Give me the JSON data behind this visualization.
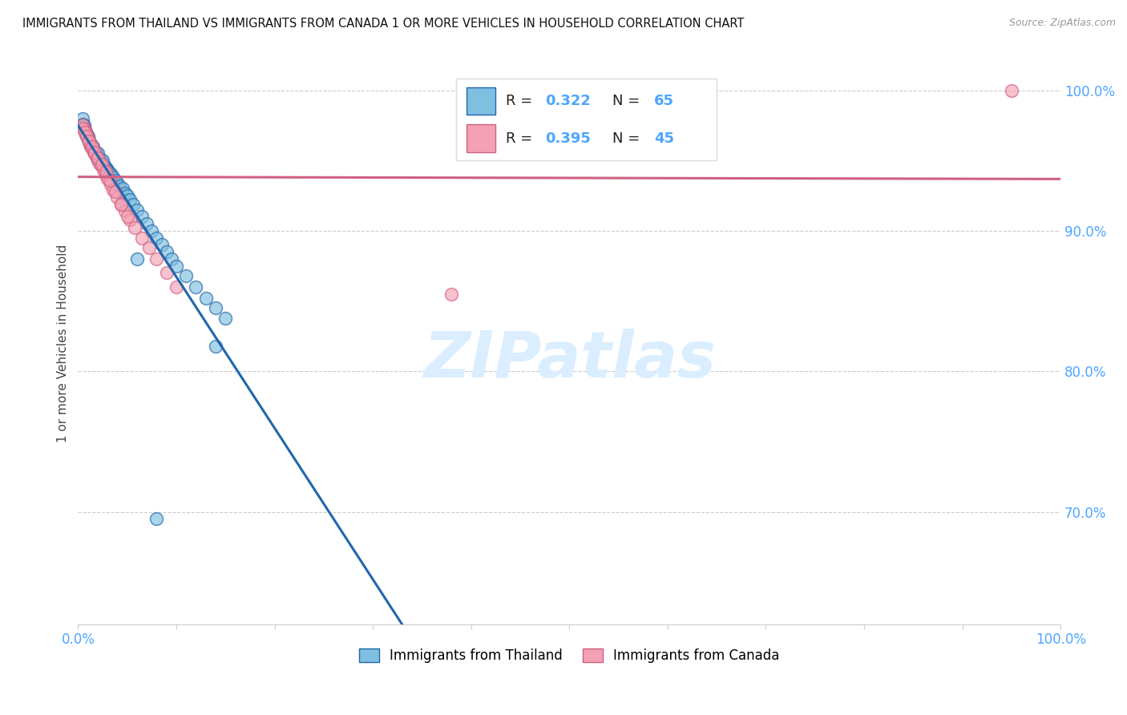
{
  "title": "IMMIGRANTS FROM THAILAND VS IMMIGRANTS FROM CANADA 1 OR MORE VEHICLES IN HOUSEHOLD CORRELATION CHART",
  "source": "Source: ZipAtlas.com",
  "ylabel": "1 or more Vehicles in Household",
  "ytick_labels": [
    "100.0%",
    "90.0%",
    "80.0%",
    "70.0%"
  ],
  "ytick_values": [
    1.0,
    0.9,
    0.8,
    0.7
  ],
  "xlim": [
    0.0,
    1.0
  ],
  "ylim": [
    0.62,
    1.02
  ],
  "legend_label_thailand": "Immigrants from Thailand",
  "legend_label_canada": "Immigrants from Canada",
  "R_thailand": 0.322,
  "N_thailand": 65,
  "R_canada": 0.395,
  "N_canada": 45,
  "color_thailand": "#7fbfdf",
  "color_canada": "#f4a0b5",
  "color_thailand_line": "#2166ac",
  "color_canada_line": "#d06080",
  "color_axis_labels": "#4da6ff",
  "watermark_color": "#daeeff",
  "thailand_x": [
    0.005,
    0.006,
    0.007,
    0.008,
    0.008,
    0.009,
    0.01,
    0.01,
    0.011,
    0.012,
    0.013,
    0.014,
    0.015,
    0.016,
    0.017,
    0.018,
    0.019,
    0.02,
    0.021,
    0.022,
    0.023,
    0.024,
    0.025,
    0.026,
    0.027,
    0.028,
    0.029,
    0.03,
    0.031,
    0.032,
    0.034,
    0.036,
    0.038,
    0.04,
    0.042,
    0.045,
    0.048,
    0.05,
    0.053,
    0.056,
    0.06,
    0.065,
    0.07,
    0.075,
    0.08,
    0.085,
    0.09,
    0.095,
    0.1,
    0.11,
    0.12,
    0.13,
    0.14,
    0.15,
    0.005,
    0.006,
    0.008,
    0.01,
    0.012,
    0.015,
    0.02,
    0.025,
    0.14,
    0.06,
    0.08
  ],
  "thailand_y": [
    0.98,
    0.975,
    0.972,
    0.969,
    0.97,
    0.968,
    0.966,
    0.965,
    0.964,
    0.962,
    0.961,
    0.96,
    0.958,
    0.957,
    0.956,
    0.955,
    0.954,
    0.953,
    0.952,
    0.951,
    0.95,
    0.949,
    0.948,
    0.947,
    0.946,
    0.945,
    0.944,
    0.943,
    0.942,
    0.941,
    0.94,
    0.938,
    0.936,
    0.934,
    0.932,
    0.93,
    0.927,
    0.925,
    0.922,
    0.919,
    0.915,
    0.91,
    0.905,
    0.9,
    0.895,
    0.89,
    0.885,
    0.88,
    0.875,
    0.868,
    0.86,
    0.852,
    0.845,
    0.838,
    0.976,
    0.973,
    0.97,
    0.967,
    0.963,
    0.96,
    0.955,
    0.95,
    0.818,
    0.88,
    0.695
  ],
  "canada_x": [
    0.005,
    0.007,
    0.008,
    0.009,
    0.01,
    0.011,
    0.012,
    0.013,
    0.015,
    0.016,
    0.018,
    0.019,
    0.02,
    0.022,
    0.024,
    0.026,
    0.028,
    0.03,
    0.033,
    0.036,
    0.04,
    0.044,
    0.048,
    0.053,
    0.058,
    0.065,
    0.072,
    0.08,
    0.09,
    0.1,
    0.005,
    0.007,
    0.009,
    0.011,
    0.014,
    0.017,
    0.02,
    0.024,
    0.028,
    0.032,
    0.038,
    0.044,
    0.05,
    0.38,
    0.95
  ],
  "canada_y": [
    0.975,
    0.972,
    0.97,
    0.968,
    0.966,
    0.964,
    0.962,
    0.96,
    0.958,
    0.956,
    0.954,
    0.952,
    0.95,
    0.948,
    0.946,
    0.943,
    0.94,
    0.937,
    0.933,
    0.929,
    0.924,
    0.919,
    0.914,
    0.908,
    0.902,
    0.895,
    0.888,
    0.88,
    0.87,
    0.86,
    0.973,
    0.97,
    0.967,
    0.964,
    0.96,
    0.956,
    0.952,
    0.947,
    0.942,
    0.936,
    0.928,
    0.919,
    0.91,
    0.855,
    1.0
  ]
}
